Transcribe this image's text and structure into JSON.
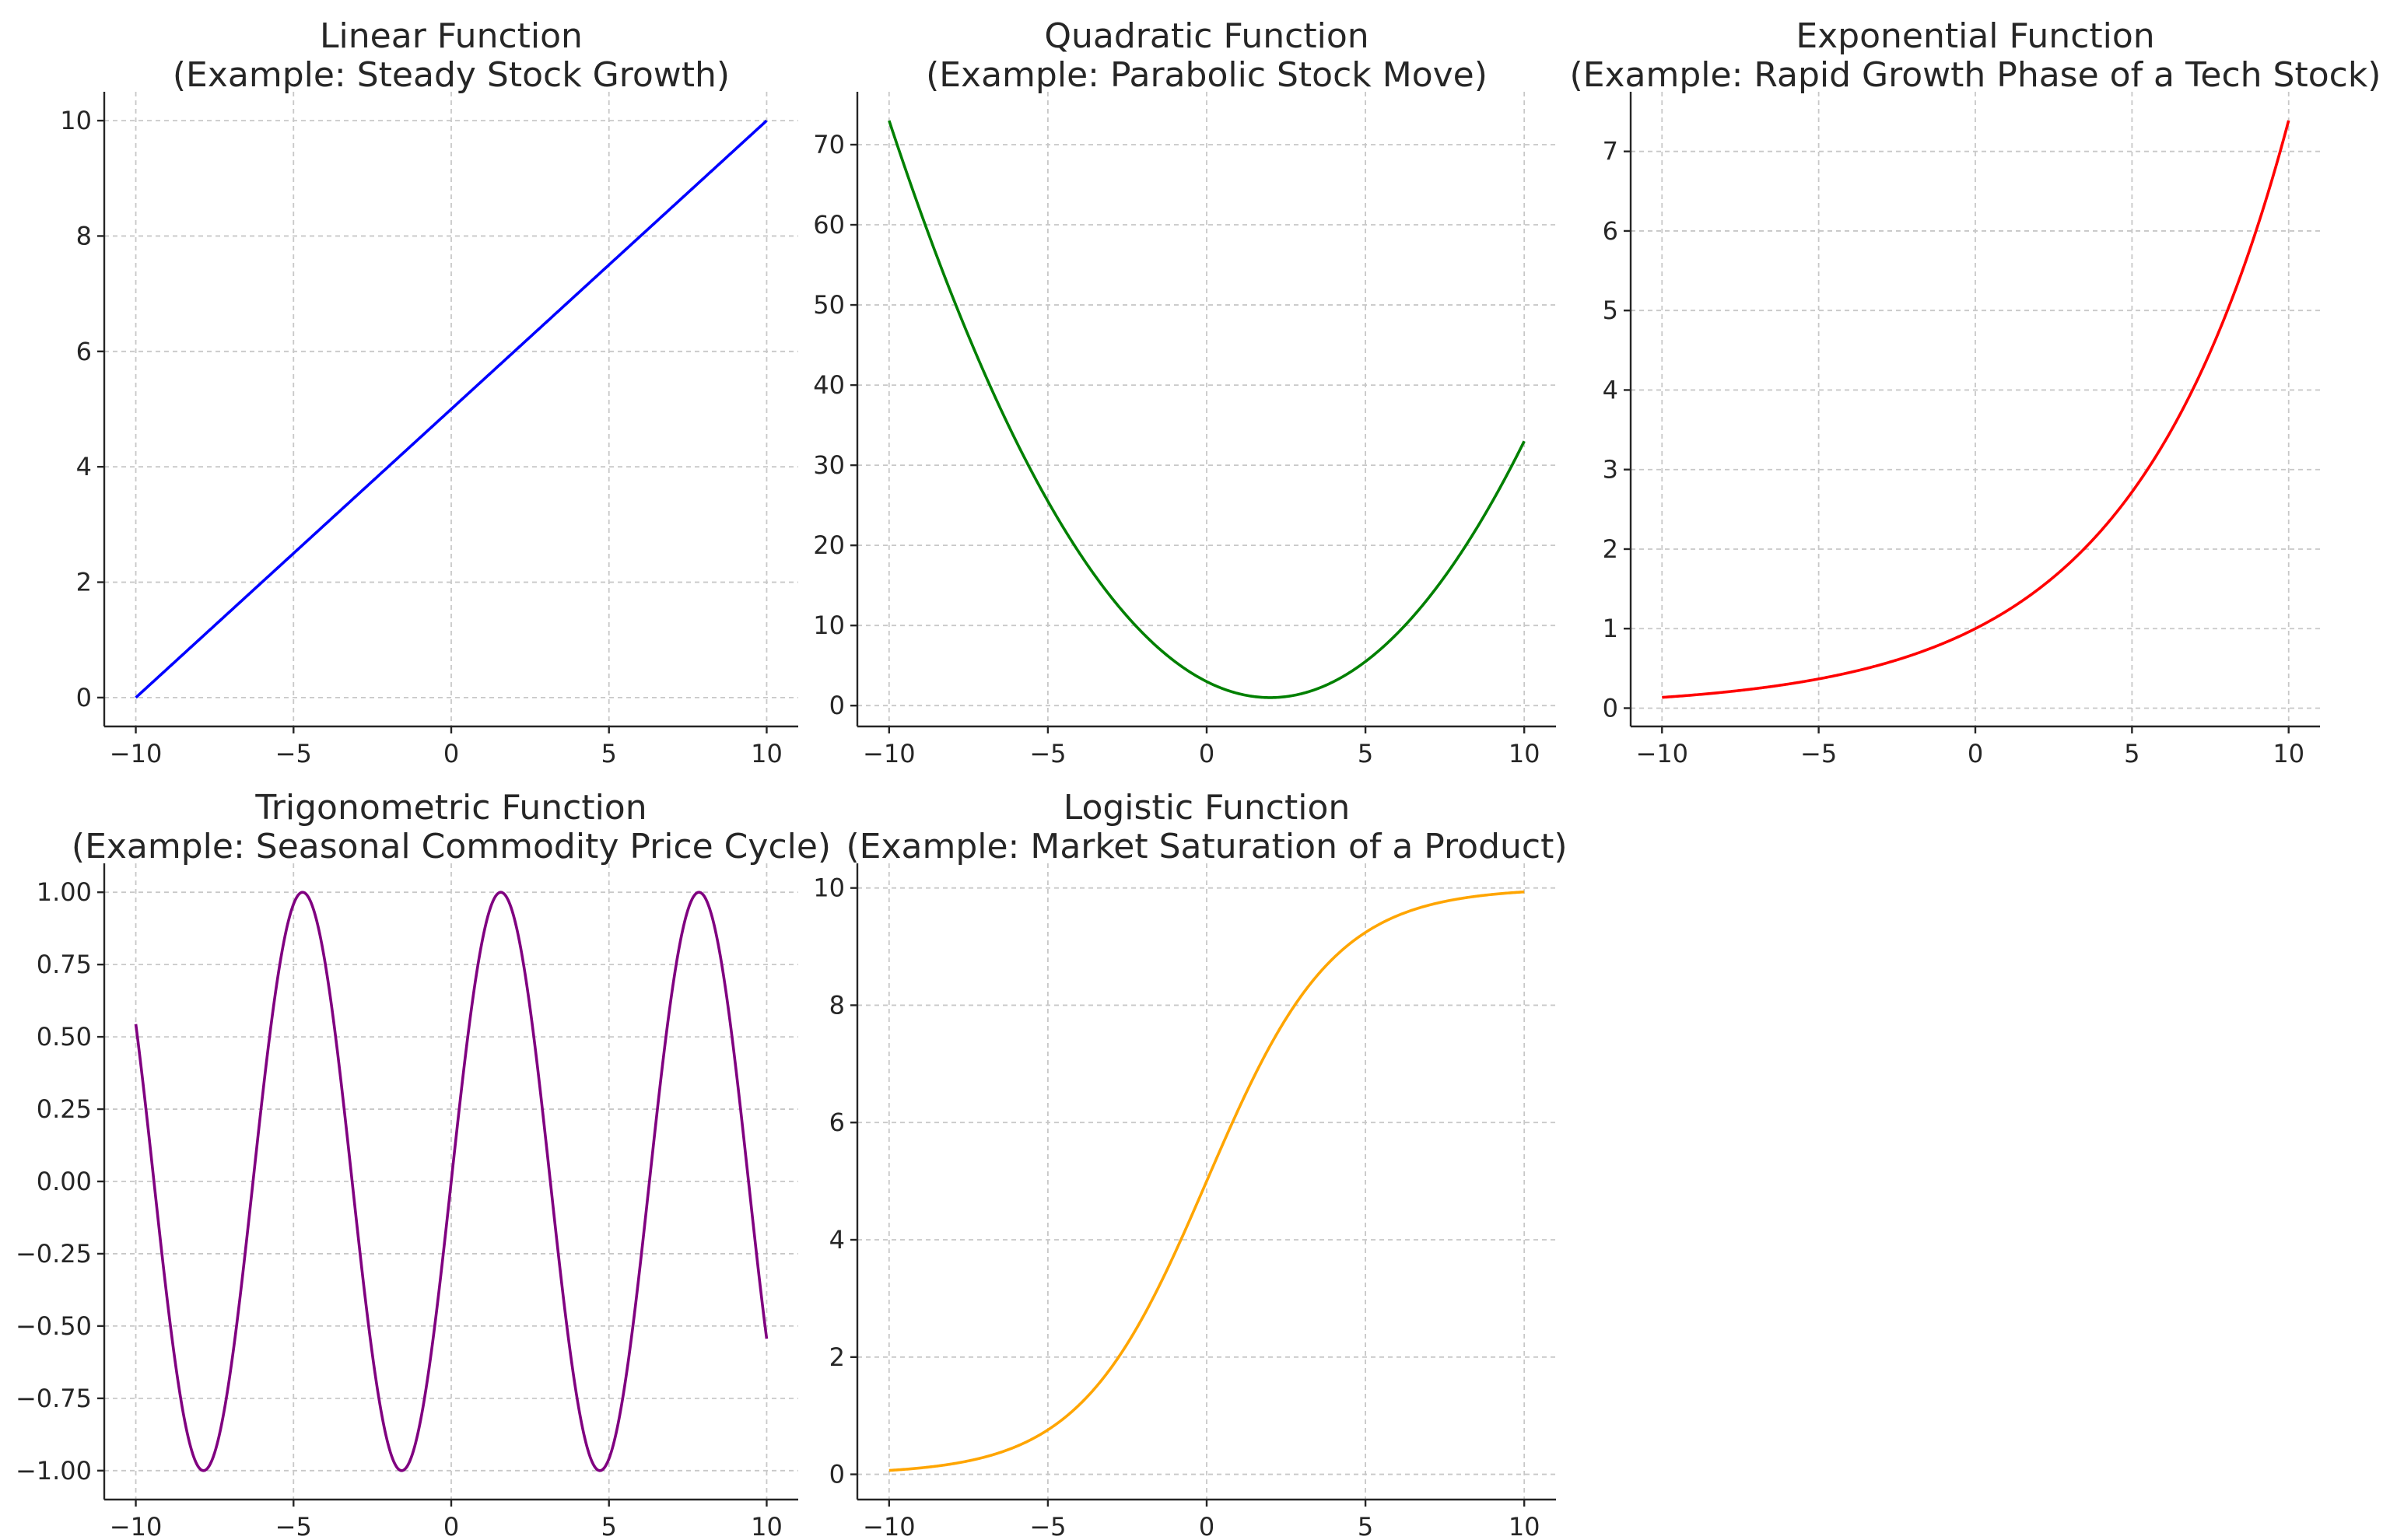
{
  "figure": {
    "background": "#ffffff"
  },
  "chart_data": [
    {
      "type": "line",
      "title": "Linear Function\n(Example: Steady Stock Growth)",
      "function": "0.5*x + 5",
      "x_range": [
        -10,
        10
      ],
      "xlim": [
        -11,
        11
      ],
      "ylim": [
        -0.5,
        10.5
      ],
      "xticks": [
        -10,
        -5,
        0,
        5,
        10
      ],
      "xtick_labels": [
        "−10",
        "−5",
        "0",
        "5",
        "10"
      ],
      "yticks": [
        0,
        2,
        4,
        6,
        8,
        10
      ],
      "ytick_labels": [
        "0",
        "2",
        "4",
        "6",
        "8",
        "10"
      ],
      "x": [
        -10,
        -5,
        0,
        5,
        10
      ],
      "y": [
        0,
        2.5,
        5,
        7.5,
        10
      ],
      "color": "#0000ff",
      "grid": true
    },
    {
      "type": "line",
      "title": "Quadratic Function\n(Example: Parabolic Stock Move)",
      "function": "0.5*(x-2)^2 + 1",
      "x_range": [
        -10,
        10
      ],
      "xlim": [
        -11,
        11
      ],
      "ylim": [
        -2.6,
        76.6
      ],
      "xticks": [
        -10,
        -5,
        0,
        5,
        10
      ],
      "xtick_labels": [
        "−10",
        "−5",
        "0",
        "5",
        "10"
      ],
      "yticks": [
        0,
        10,
        20,
        30,
        40,
        50,
        60,
        70
      ],
      "ytick_labels": [
        "0",
        "10",
        "20",
        "30",
        "40",
        "50",
        "60",
        "70"
      ],
      "x": [
        -10,
        -5,
        0,
        2,
        5,
        10
      ],
      "y": [
        73,
        25.5,
        3,
        1,
        5.5,
        33
      ],
      "color": "#008000",
      "grid": true
    },
    {
      "type": "line",
      "title": "Exponential Function\n(Example: Rapid Growth Phase of a Tech Stock)",
      "function": "exp(0.2*x)",
      "x_range": [
        -10,
        10
      ],
      "xlim": [
        -11,
        11
      ],
      "ylim": [
        -0.23,
        7.75
      ],
      "xticks": [
        -10,
        -5,
        0,
        5,
        10
      ],
      "xtick_labels": [
        "−10",
        "−5",
        "0",
        "5",
        "10"
      ],
      "yticks": [
        0,
        1,
        2,
        3,
        4,
        5,
        6,
        7
      ],
      "ytick_labels": [
        "0",
        "1",
        "2",
        "3",
        "4",
        "5",
        "6",
        "7"
      ],
      "x": [
        -10,
        -5,
        0,
        5,
        10
      ],
      "y": [
        0.135,
        0.368,
        1,
        2.718,
        7.389
      ],
      "color": "#ff0000",
      "grid": true
    },
    {
      "type": "line",
      "title": "Trigonometric Function\n(Example: Seasonal Commodity Price Cycle)",
      "function": "sin(x)",
      "x_range": [
        -10,
        10
      ],
      "xlim": [
        -11,
        11
      ],
      "ylim": [
        -1.1,
        1.1
      ],
      "xticks": [
        -10,
        -5,
        0,
        5,
        10
      ],
      "xtick_labels": [
        "−10",
        "−5",
        "0",
        "5",
        "10"
      ],
      "yticks": [
        1,
        0.75,
        0.5,
        0.25,
        0,
        -0.25,
        -0.5,
        -0.75,
        -1
      ],
      "ytick_labels": [
        "1.00",
        "0.75",
        "0.50",
        "0.25",
        "0.00",
        "−0.25",
        "−0.50",
        "−0.75",
        "−1.00"
      ],
      "x": [
        -10,
        -7.85,
        -4.71,
        -1.57,
        1.57,
        4.71,
        7.85,
        10
      ],
      "y": [
        0.544,
        -1,
        1,
        -1,
        1,
        -1,
        1,
        -0.544
      ],
      "color": "#800080",
      "grid": true
    },
    {
      "type": "line",
      "title": "Logistic Function\n(Example: Market Saturation of a Product)",
      "function": "10/(1+exp(-0.5*x))",
      "x_range": [
        -10,
        10
      ],
      "xlim": [
        -11,
        11
      ],
      "ylim": [
        -0.43,
        10.42
      ],
      "xticks": [
        -10,
        -5,
        0,
        5,
        10
      ],
      "xtick_labels": [
        "−10",
        "−5",
        "0",
        "5",
        "10"
      ],
      "yticks": [
        0,
        2,
        4,
        6,
        8,
        10
      ],
      "ytick_labels": [
        "0",
        "2",
        "4",
        "6",
        "8",
        "10"
      ],
      "x": [
        -10,
        -5,
        0,
        5,
        10
      ],
      "y": [
        0.067,
        0.759,
        5,
        9.241,
        9.933
      ],
      "color": "#ffa500",
      "grid": true
    }
  ]
}
